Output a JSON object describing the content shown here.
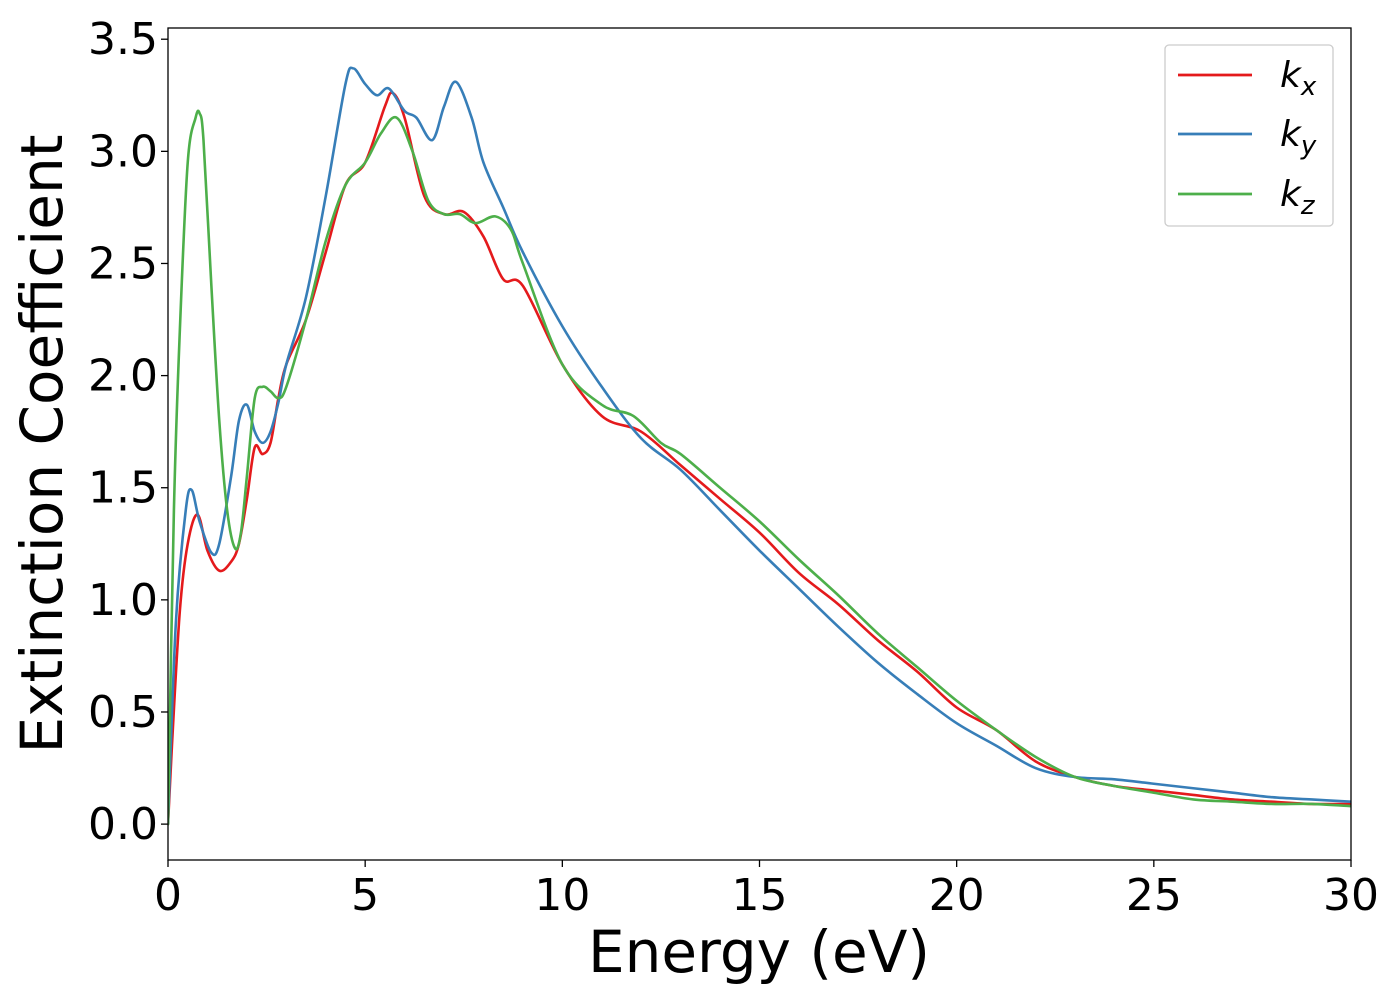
{
  "chart_data": {
    "type": "line",
    "title": "",
    "xlabel": "Energy (eV)",
    "ylabel": "Extinction Coefficient",
    "xlim": [
      0,
      30
    ],
    "ylim": [
      -0.16,
      3.55
    ],
    "xticks": [
      0,
      5,
      10,
      15,
      20,
      25,
      30
    ],
    "xtick_labels": [
      "0",
      "5",
      "10",
      "15",
      "20",
      "25",
      "30"
    ],
    "yticks": [
      0.0,
      0.5,
      1.0,
      1.5,
      2.0,
      2.5,
      3.0,
      3.5
    ],
    "ytick_labels": [
      "0.0",
      "0.5",
      "1.0",
      "1.5",
      "2.0",
      "2.5",
      "3.0",
      "3.5"
    ],
    "grid": false,
    "legend_position": "top-right",
    "series": [
      {
        "name": "k",
        "subscript": "x",
        "color": "#e41a1c",
        "x": [
          0.0,
          0.1,
          0.3,
          0.5,
          0.75,
          1.0,
          1.3,
          1.6,
          1.8,
          2.0,
          2.2,
          2.4,
          2.6,
          2.8,
          3.0,
          3.5,
          4.0,
          4.5,
          5.0,
          5.5,
          5.7,
          6.0,
          6.5,
          7.0,
          7.5,
          8.0,
          8.5,
          9.0,
          10.0,
          11.0,
          12.0,
          13.0,
          14.0,
          15.0,
          16.0,
          17.0,
          18.0,
          19.0,
          20.0,
          21.0,
          22.0,
          23.0,
          24.0,
          25.0,
          26.0,
          27.0,
          28.0,
          29.0,
          30.0
        ],
        "y": [
          0.0,
          0.35,
          0.95,
          1.25,
          1.38,
          1.22,
          1.13,
          1.17,
          1.25,
          1.45,
          1.68,
          1.65,
          1.7,
          1.9,
          2.05,
          2.25,
          2.55,
          2.85,
          2.95,
          3.2,
          3.26,
          3.15,
          2.8,
          2.72,
          2.73,
          2.62,
          2.43,
          2.4,
          2.05,
          1.82,
          1.75,
          1.6,
          1.45,
          1.3,
          1.12,
          0.98,
          0.82,
          0.68,
          0.52,
          0.42,
          0.28,
          0.21,
          0.17,
          0.15,
          0.13,
          0.11,
          0.1,
          0.09,
          0.09
        ]
      },
      {
        "name": "k",
        "subscript": "y",
        "color": "#377eb8",
        "x": [
          0.0,
          0.2,
          0.45,
          0.6,
          0.8,
          1.1,
          1.3,
          1.6,
          1.8,
          2.0,
          2.2,
          2.4,
          2.6,
          2.8,
          3.0,
          3.5,
          4.0,
          4.5,
          4.7,
          5.0,
          5.3,
          5.6,
          6.0,
          6.3,
          6.7,
          7.0,
          7.3,
          7.7,
          8.0,
          8.5,
          9.0,
          10.0,
          11.0,
          12.0,
          13.0,
          14.0,
          15.0,
          16.0,
          17.0,
          18.0,
          19.0,
          20.0,
          21.0,
          22.0,
          23.0,
          24.0,
          25.0,
          26.0,
          27.0,
          28.0,
          29.0,
          30.0
        ],
        "y": [
          0.0,
          0.9,
          1.4,
          1.49,
          1.35,
          1.21,
          1.25,
          1.55,
          1.8,
          1.87,
          1.75,
          1.7,
          1.75,
          1.88,
          2.05,
          2.35,
          2.8,
          3.3,
          3.37,
          3.3,
          3.25,
          3.28,
          3.18,
          3.15,
          3.05,
          3.2,
          3.31,
          3.15,
          2.95,
          2.75,
          2.55,
          2.22,
          1.95,
          1.72,
          1.58,
          1.4,
          1.22,
          1.05,
          0.88,
          0.72,
          0.58,
          0.45,
          0.35,
          0.25,
          0.21,
          0.2,
          0.18,
          0.16,
          0.14,
          0.12,
          0.11,
          0.1
        ]
      },
      {
        "name": "k",
        "subscript": "z",
        "color": "#4daf4a",
        "x": [
          0.0,
          0.15,
          0.3,
          0.5,
          0.7,
          0.8,
          0.9,
          1.1,
          1.3,
          1.5,
          1.7,
          1.85,
          2.0,
          2.2,
          2.4,
          2.6,
          2.8,
          3.0,
          3.5,
          4.0,
          4.5,
          5.0,
          5.4,
          5.8,
          6.2,
          6.6,
          7.0,
          7.4,
          7.8,
          8.3,
          8.7,
          9.0,
          10.0,
          11.0,
          11.8,
          12.5,
          13.0,
          14.0,
          15.0,
          16.0,
          17.0,
          18.0,
          19.0,
          20.0,
          21.0,
          22.0,
          23.0,
          24.0,
          25.0,
          26.0,
          27.0,
          28.0,
          29.0,
          30.0
        ],
        "y": [
          0.0,
          1.4,
          2.2,
          2.95,
          3.15,
          3.17,
          3.05,
          2.4,
          1.8,
          1.4,
          1.23,
          1.3,
          1.55,
          1.9,
          1.95,
          1.93,
          1.9,
          1.95,
          2.25,
          2.6,
          2.85,
          2.95,
          3.08,
          3.15,
          3.0,
          2.78,
          2.72,
          2.72,
          2.68,
          2.71,
          2.65,
          2.5,
          2.05,
          1.87,
          1.82,
          1.7,
          1.65,
          1.5,
          1.35,
          1.18,
          1.02,
          0.85,
          0.7,
          0.55,
          0.42,
          0.3,
          0.21,
          0.17,
          0.14,
          0.11,
          0.1,
          0.09,
          0.09,
          0.08
        ]
      }
    ]
  }
}
